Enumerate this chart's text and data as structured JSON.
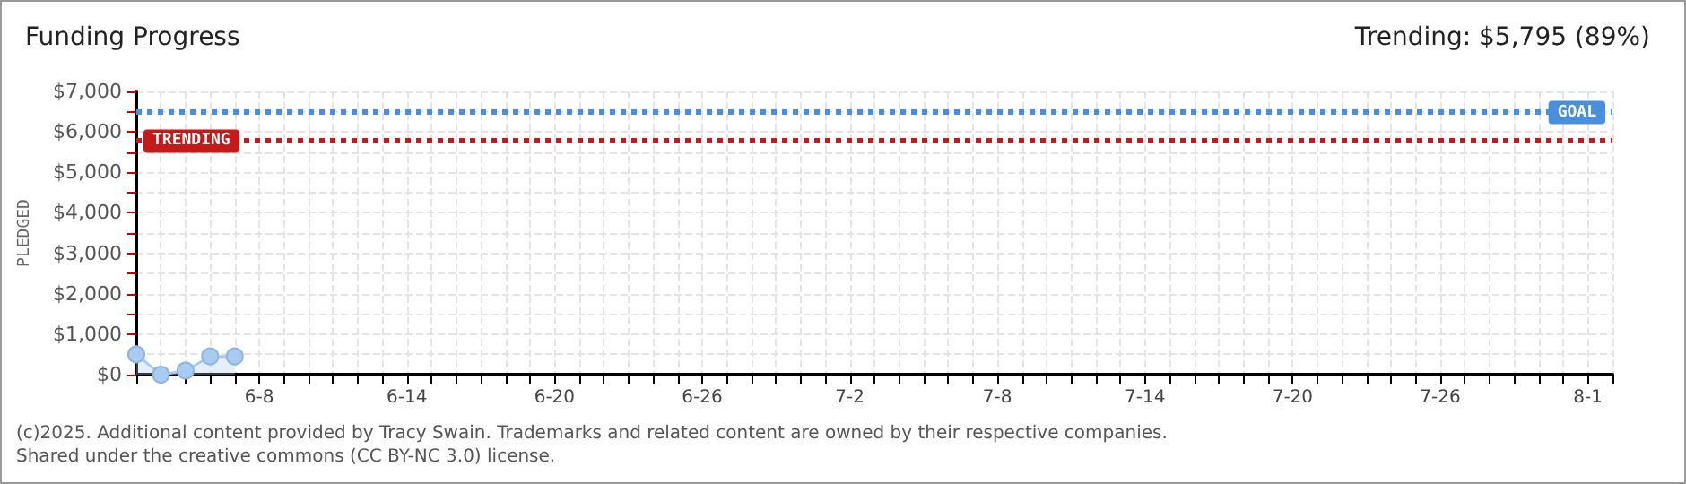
{
  "chart_data": {
    "type": "area",
    "title": "Funding Progress",
    "subtitle": "Trending: $5,795 (89%)",
    "ylabel": "PLEDGED",
    "x": [
      "--06-03",
      "--06-04",
      "--06-05",
      "--06-06",
      "--06-07"
    ],
    "series": [
      {
        "color": "#a9cbf0",
        "values": [
          500,
          0,
          100,
          450,
          450
        ]
      }
    ],
    "xlim": [
      "--06-03",
      "--08-02"
    ],
    "xticks": [
      {
        "value": "--06-03",
        "label": null
      },
      {
        "value": "--06-04",
        "label": null
      },
      {
        "value": "--06-05",
        "label": null
      },
      {
        "value": "--06-06",
        "label": null
      },
      {
        "value": "--06-07",
        "label": null
      },
      {
        "value": "--06-08",
        "label": "6-8"
      },
      {
        "value": "--06-09",
        "label": null
      },
      {
        "value": "--06-10",
        "label": null
      },
      {
        "value": "--06-11",
        "label": null
      },
      {
        "value": "--06-12",
        "label": null
      },
      {
        "value": "--06-13",
        "label": null
      },
      {
        "value": "--06-14",
        "label": "6-14"
      },
      {
        "value": "--06-15",
        "label": null
      },
      {
        "value": "--06-16",
        "label": null
      },
      {
        "value": "--06-17",
        "label": null
      },
      {
        "value": "--06-18",
        "label": null
      },
      {
        "value": "--06-19",
        "label": null
      },
      {
        "value": "--06-20",
        "label": "6-20"
      },
      {
        "value": "--06-21",
        "label": null
      },
      {
        "value": "--06-22",
        "label": null
      },
      {
        "value": "--06-23",
        "label": null
      },
      {
        "value": "--06-24",
        "label": null
      },
      {
        "value": "--06-25",
        "label": null
      },
      {
        "value": "--06-26",
        "label": "6-26"
      },
      {
        "value": "--06-27",
        "label": null
      },
      {
        "value": "--06-28",
        "label": null
      },
      {
        "value": "--06-29",
        "label": null
      },
      {
        "value": "--06-30",
        "label": null
      },
      {
        "value": "--07-01",
        "label": null
      },
      {
        "value": "--07-02",
        "label": "7-2"
      },
      {
        "value": "--07-03",
        "label": null
      },
      {
        "value": "--07-04",
        "label": null
      },
      {
        "value": "--07-05",
        "label": null
      },
      {
        "value": "--07-06",
        "label": null
      },
      {
        "value": "--07-07",
        "label": null
      },
      {
        "value": "--07-08",
        "label": "7-8"
      },
      {
        "value": "--07-09",
        "label": null
      },
      {
        "value": "--07-10",
        "label": null
      },
      {
        "value": "--07-11",
        "label": null
      },
      {
        "value": "--07-12",
        "label": null
      },
      {
        "value": "--07-13",
        "label": null
      },
      {
        "value": "--07-14",
        "label": "7-14"
      },
      {
        "value": "--07-15",
        "label": null
      },
      {
        "value": "--07-16",
        "label": null
      },
      {
        "value": "--07-17",
        "label": null
      },
      {
        "value": "--07-18",
        "label": null
      },
      {
        "value": "--07-19",
        "label": null
      },
      {
        "value": "--07-20",
        "label": "7-20"
      },
      {
        "value": "--07-21",
        "label": null
      },
      {
        "value": "--07-22",
        "label": null
      },
      {
        "value": "--07-23",
        "label": null
      },
      {
        "value": "--07-24",
        "label": null
      },
      {
        "value": "--07-25",
        "label": null
      },
      {
        "value": "--07-26",
        "label": "7-26"
      },
      {
        "value": "--07-27",
        "label": null
      },
      {
        "value": "--07-28",
        "label": null
      },
      {
        "value": "--07-29",
        "label": null
      },
      {
        "value": "--07-30",
        "label": null
      },
      {
        "value": "--07-31",
        "label": null
      },
      {
        "value": "--08-01",
        "label": "8-1"
      },
      {
        "value": "--08-02",
        "label": null
      }
    ],
    "ylim": [
      0,
      7000
    ],
    "yticks": [
      {
        "value": 0,
        "label": "$0"
      },
      {
        "value": 500,
        "label": null
      },
      {
        "value": 1000,
        "label": "$1,000"
      },
      {
        "value": 1500,
        "label": null
      },
      {
        "value": 2000,
        "label": "$2,000"
      },
      {
        "value": 2500,
        "label": null
      },
      {
        "value": 3000,
        "label": "$3,000"
      },
      {
        "value": 3500,
        "label": null
      },
      {
        "value": 4000,
        "label": "$4,000"
      },
      {
        "value": 4500,
        "label": null
      },
      {
        "value": 5000,
        "label": "$5,000"
      },
      {
        "value": 5500,
        "label": null
      },
      {
        "value": 6000,
        "label": "$6,000"
      },
      {
        "value": 6500,
        "label": null
      },
      {
        "value": 7000,
        "label": "$7,000"
      }
    ],
    "grid": true,
    "marker": "circle",
    "ref_lines": [
      {
        "axis": "y",
        "value": 6500,
        "label": "GOAL",
        "color": "#4a8fdc",
        "line_style": "dotted"
      },
      {
        "axis": "y",
        "value": 5795,
        "label": "TRENDING",
        "color": "#c41a1a",
        "line_style": "dotted"
      }
    ],
    "annotations": [
      "(c)2025. Additional content provided by Tracy Swain. Trademarks and related content are owned by their respective companies.",
      "Shared under the creative commons (CC BY-NC 3.0) license."
    ]
  }
}
